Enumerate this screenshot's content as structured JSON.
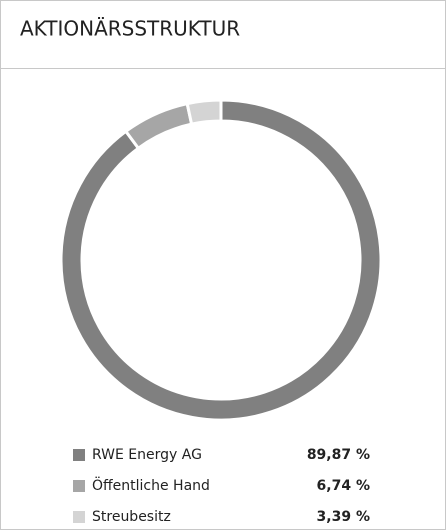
{
  "chart_data": {
    "type": "pie",
    "title": "AKTIONÄRSSTRUKTUR",
    "categories": [
      "RWE Energy AG",
      "Öffentliche Hand",
      "Streubesitz"
    ],
    "values": [
      89.87,
      6.74,
      3.39
    ],
    "value_labels": [
      "89,87 %",
      "6,74 %",
      "3,39 %"
    ],
    "colors": [
      "#808080",
      "#a6a6a6",
      "#d4d4d4"
    ]
  }
}
